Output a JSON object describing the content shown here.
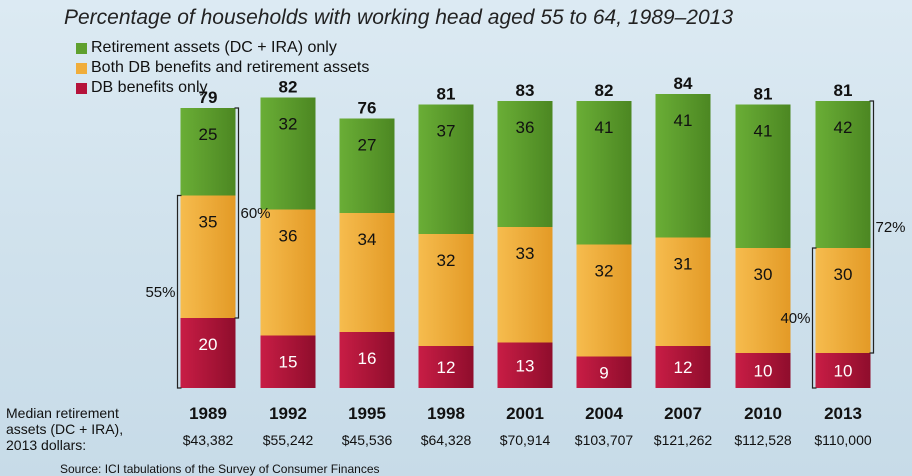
{
  "title": "Percentage of households with working head aged 55 to 64, 1989–2013",
  "legend": [
    {
      "label": "Retirement assets (DC + IRA) only",
      "color": "#5fa02e"
    },
    {
      "label": "Both DB benefits and retirement assets",
      "color": "#f0ad3a"
    },
    {
      "label": "DB benefits only",
      "color": "#b5123a"
    }
  ],
  "median_label": [
    "Median retirement",
    "assets (DC + IRA),",
    "2013 dollars:"
  ],
  "source": "Source: ICI tabulations of the Survey of Consumer Finances",
  "chart_data": {
    "type": "bar",
    "stacked": true,
    "categories": [
      "1989",
      "1992",
      "1995",
      "1998",
      "2001",
      "2004",
      "2007",
      "2010",
      "2013"
    ],
    "series": [
      {
        "name": "DB benefits only",
        "values": [
          20,
          15,
          16,
          12,
          13,
          9,
          12,
          10,
          10
        ],
        "color": "#b5123a"
      },
      {
        "name": "Both DB benefits and retirement assets",
        "values": [
          35,
          36,
          34,
          32,
          33,
          32,
          31,
          30,
          30
        ],
        "color": "#f0ad3a"
      },
      {
        "name": "Retirement assets (DC + IRA) only",
        "values": [
          25,
          32,
          27,
          37,
          36,
          41,
          41,
          41,
          42
        ],
        "color": "#5fa02e"
      }
    ],
    "totals": [
      "79",
      "82",
      "76",
      "81",
      "83",
      "82",
      "84",
      "81",
      "81"
    ],
    "medians": [
      "$43,382",
      "$55,242",
      "$45,536",
      "$64,328",
      "$70,914",
      "$103,707",
      "$121,262",
      "$112,528",
      "$110,000"
    ],
    "brackets": [
      {
        "category": "1989",
        "label": "55%",
        "spans": "DB benefits only + Both",
        "side": "left"
      },
      {
        "category": "1989",
        "label": "60%",
        "spans": "Both + Retirement assets only",
        "side": "right"
      },
      {
        "category": "2013",
        "label": "40%",
        "spans": "DB benefits only + Both",
        "side": "left"
      },
      {
        "category": "2013",
        "label": "72%",
        "spans": "Both + Retirement assets only",
        "side": "right"
      }
    ]
  }
}
